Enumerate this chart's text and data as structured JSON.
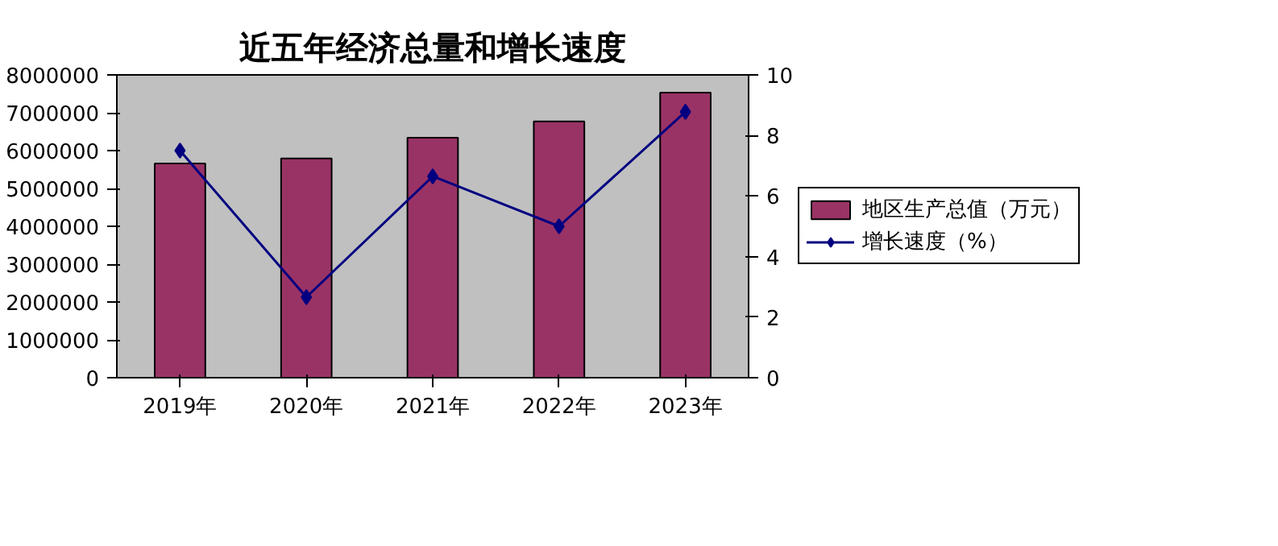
{
  "chart_data": {
    "type": "bar",
    "title": "近五年经济总量和增长速度",
    "categories": [
      "2019年",
      "2020年",
      "2021年",
      "2022年",
      "2023年"
    ],
    "series": [
      {
        "name": "地区生产总值（万元）",
        "color": "#993366",
        "values": [
          5660000,
          5790000,
          6340000,
          6770000,
          7530000
        ]
      },
      {
        "name": "增长速度（%）",
        "type": "line",
        "axis": "y2",
        "color": "#000080",
        "marker": "diamond",
        "values": [
          7.5,
          2.66,
          6.65,
          5.0,
          8.78
        ]
      }
    ],
    "ylim": [
      0,
      8000000
    ],
    "yticks": [
      0,
      1000000,
      2000000,
      3000000,
      4000000,
      5000000,
      6000000,
      7000000,
      8000000
    ],
    "y2lim": [
      0,
      10
    ],
    "y2ticks": [
      0,
      2,
      4,
      6,
      8,
      10
    ],
    "grid": false,
    "legend": "right"
  }
}
